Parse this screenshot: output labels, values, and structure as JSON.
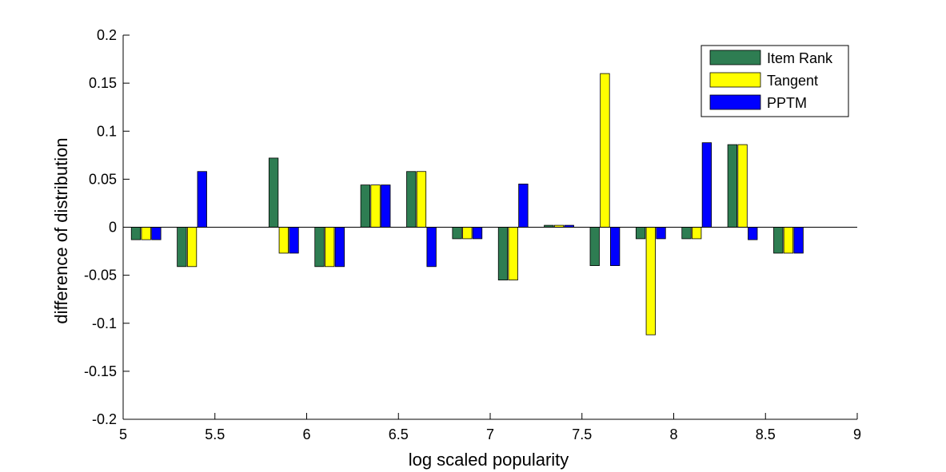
{
  "chart_data": {
    "type": "bar",
    "title": "",
    "xlabel": "log scaled popularity",
    "ylabel": "difference of distribution",
    "xlim": [
      5,
      9
    ],
    "ylim": [
      -0.2,
      0.2
    ],
    "x_ticks": [
      "5",
      "5.5",
      "6",
      "6.5",
      "7",
      "7.5",
      "8",
      "8.5",
      "9"
    ],
    "y_ticks": [
      "-0.2",
      "-0.15",
      "-0.1",
      "-0.05",
      "0",
      "0.05",
      "0.1",
      "0.15",
      "0.2"
    ],
    "grid": false,
    "legend_position": "top-right",
    "categories": [
      5.125,
      5.375,
      5.875,
      6.125,
      6.375,
      6.625,
      6.875,
      7.125,
      7.375,
      7.625,
      7.875,
      8.125,
      8.375,
      8.625
    ],
    "series": [
      {
        "name": "Item Rank",
        "color": "#2E7D52",
        "values": [
          -0.013,
          -0.041,
          0.072,
          -0.041,
          0.044,
          0.058,
          -0.012,
          -0.055,
          0.002,
          -0.04,
          -0.012,
          -0.012,
          0.086,
          -0.027
        ]
      },
      {
        "name": "Tangent",
        "color": "#FFFF00",
        "values": [
          -0.013,
          -0.041,
          -0.027,
          -0.041,
          0.044,
          0.058,
          -0.012,
          -0.055,
          0.002,
          0.16,
          -0.112,
          -0.012,
          0.086,
          -0.027
        ]
      },
      {
        "name": "PPTM",
        "color": "#0000FF",
        "values": [
          -0.013,
          0.058,
          -0.027,
          -0.041,
          0.044,
          -0.041,
          -0.012,
          0.045,
          0.002,
          -0.04,
          -0.012,
          0.088,
          -0.013,
          -0.027
        ]
      }
    ]
  }
}
